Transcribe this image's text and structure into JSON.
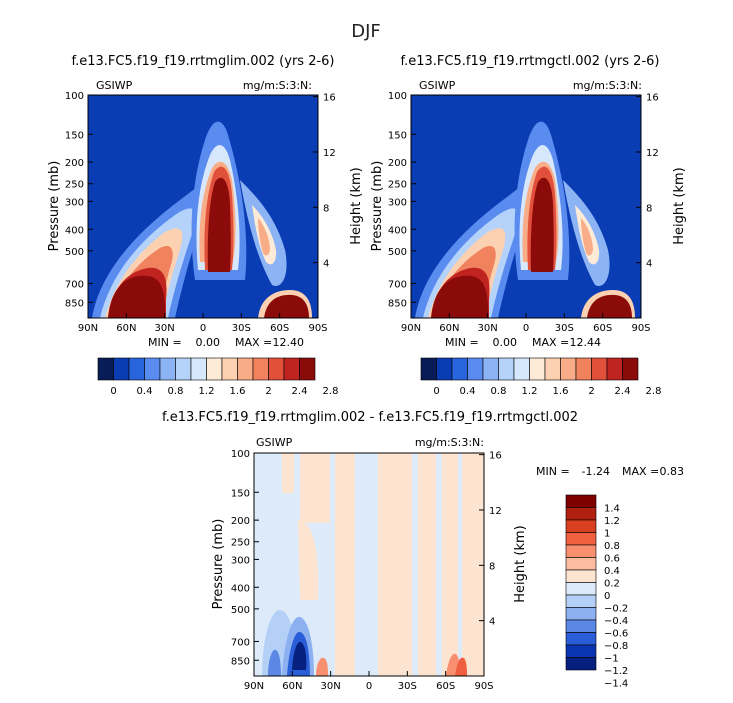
{
  "page_title": "DJF",
  "chart_data": [
    {
      "type": "heatmap",
      "title": "f.e13.FC5.f19_f19.rrtmglim.002 (yrs 2-6)",
      "left_label": "GSIWP",
      "right_label": "mg/m:S:3:N:",
      "ylabel": "Pressure (mb)",
      "ylabel_right": "Height (km)",
      "pressure_ticks": [
        "100",
        "150",
        "200",
        "250",
        "300",
        "400",
        "500",
        "700",
        "850"
      ],
      "height_ticks": [
        "16",
        "12",
        "8",
        "4"
      ],
      "lat_ticks": [
        "90N",
        "60N",
        "30N",
        "0",
        "30S",
        "60S",
        "90S"
      ],
      "min_label": "MIN =",
      "min_value": "0.00",
      "max_label": "MAX =",
      "max_value": "12.40",
      "colorbar_labels": [
        "0",
        "0.4",
        "0.8",
        "1.2",
        "1.6",
        "2",
        "2.4",
        "2.8"
      ],
      "xlim": [
        90,
        -90
      ],
      "ylim": [
        1000,
        100
      ]
    },
    {
      "type": "heatmap",
      "title": "f.e13.FC5.f19_f19.rrtmgctl.002 (yrs 2-6)",
      "left_label": "GSIWP",
      "right_label": "mg/m:S:3:N:",
      "ylabel": "Pressure (mb)",
      "ylabel_right": "Height (km)",
      "pressure_ticks": [
        "100",
        "150",
        "200",
        "250",
        "300",
        "400",
        "500",
        "700",
        "850"
      ],
      "height_ticks": [
        "16",
        "12",
        "8",
        "4"
      ],
      "lat_ticks": [
        "90N",
        "60N",
        "30N",
        "0",
        "30S",
        "60S",
        "90S"
      ],
      "min_label": "MIN =",
      "min_value": "0.00",
      "max_label": "MAX =",
      "max_value": "12.44",
      "colorbar_labels": [
        "0",
        "0.4",
        "0.8",
        "1.2",
        "1.6",
        "2",
        "2.4",
        "2.8"
      ],
      "xlim": [
        90,
        -90
      ],
      "ylim": [
        1000,
        100
      ]
    },
    {
      "type": "heatmap",
      "title": "f.e13.FC5.f19_f19.rrtmglim.002 - f.e13.FC5.f19_f19.rrtmgctl.002",
      "left_label": "GSIWP",
      "right_label": "mg/m:S:3:N:",
      "ylabel": "Pressure (mb)",
      "ylabel_right": "Height (km)",
      "pressure_ticks": [
        "100",
        "150",
        "200",
        "250",
        "300",
        "400",
        "500",
        "700",
        "850"
      ],
      "height_ticks": [
        "16",
        "12",
        "8",
        "4"
      ],
      "lat_ticks": [
        "90N",
        "60N",
        "30N",
        "0",
        "30S",
        "60S",
        "90S"
      ],
      "min_label": "MIN =",
      "min_value": "-1.24",
      "max_label": "MAX =",
      "max_value": "0.83",
      "colorbar_labels": [
        "1.4",
        "1.2",
        "1",
        "0.8",
        "0.6",
        "0.4",
        "0.2",
        "0",
        "−0.2",
        "−0.4",
        "−0.6",
        "−0.8",
        "−1",
        "−1.2",
        "−1.4"
      ],
      "xlim": [
        90,
        -90
      ],
      "ylim": [
        1000,
        100
      ]
    }
  ],
  "colors": {
    "seq": [
      "#081d58",
      "#0a3cb4",
      "#2864dc",
      "#5a8cf0",
      "#8cb4f5",
      "#b4d2fa",
      "#d7e8fc",
      "#fdebd8",
      "#fcd1b2",
      "#f8ad88",
      "#f0825e",
      "#e0503a",
      "#c02420",
      "#8b0a0a"
    ],
    "diff": [
      "#800000",
      "#b22010",
      "#d84020",
      "#f06040",
      "#f89070",
      "#fcbca0",
      "#fde4d0",
      "#dceafa",
      "#b4d0f6",
      "#8cb0f0",
      "#5a88e4",
      "#2a5ed8",
      "#0a36b4",
      "#062080"
    ]
  }
}
